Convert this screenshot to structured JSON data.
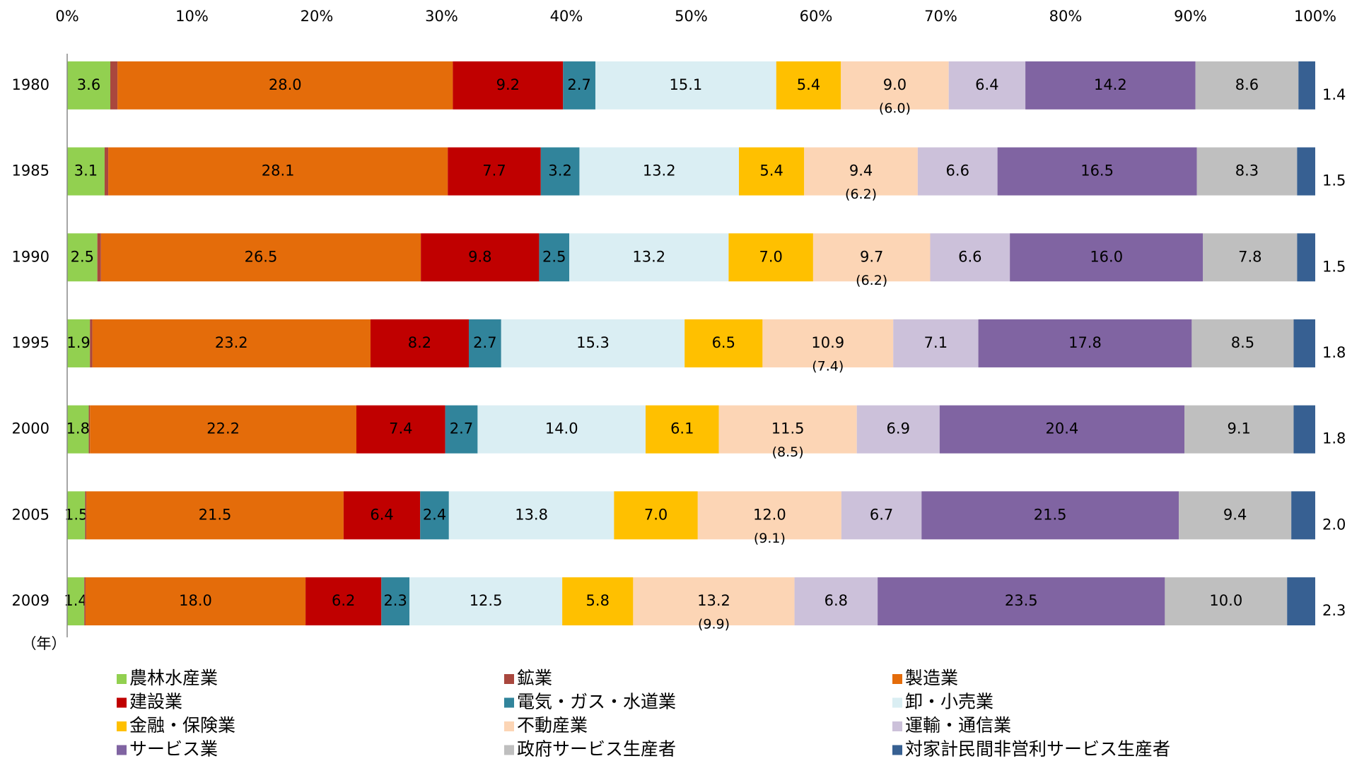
{
  "chart_data": {
    "type": "bar",
    "orientation": "horizontal",
    "stacked": "percent",
    "y_label": "（年）",
    "categories": [
      "1980",
      "1985",
      "1990",
      "1995",
      "2000",
      "2005",
      "2009"
    ],
    "xlim": [
      0,
      100
    ],
    "xticks": [
      {
        "value": 0,
        "label": "0%"
      },
      {
        "value": 10,
        "label": "10%"
      },
      {
        "value": 20,
        "label": "20%"
      },
      {
        "value": 30,
        "label": "30%"
      },
      {
        "value": 40,
        "label": "40%"
      },
      {
        "value": 50,
        "label": "50%"
      },
      {
        "value": 60,
        "label": "60%"
      },
      {
        "value": 70,
        "label": "70%"
      },
      {
        "value": 80,
        "label": "80%"
      },
      {
        "value": 90,
        "label": "90%"
      },
      {
        "value": 100,
        "label": "100%"
      }
    ],
    "grid": false,
    "legend": "bottom",
    "series": [
      {
        "name": "農林水産業",
        "color": "#92d050",
        "values": [
          3.6,
          3.1,
          2.5,
          1.9,
          1.8,
          1.5,
          1.4
        ],
        "value_labels": [
          "3.6",
          "3.1",
          "2.5",
          "1.9",
          "1.8",
          "1.5",
          "1.4"
        ]
      },
      {
        "name": "鉱業",
        "color": "#a9473e",
        "values": [
          0.6,
          0.3,
          0.3,
          0.2,
          0.1,
          0.1,
          0.1
        ],
        "value_labels": [
          "0.6",
          "0.3",
          "0.3",
          "0.2",
          "0.1",
          "0.1",
          "0.1"
        ]
      },
      {
        "name": "製造業",
        "color": "#e46c0a",
        "values": [
          28.0,
          28.1,
          26.5,
          23.2,
          22.2,
          21.5,
          18.0
        ],
        "value_labels": [
          "28.0",
          "28.1",
          "26.5",
          "23.2",
          "22.2",
          "21.5",
          "18.0"
        ]
      },
      {
        "name": "建設業",
        "color": "#c00000",
        "values": [
          9.2,
          7.7,
          9.8,
          8.2,
          7.4,
          6.4,
          6.2
        ],
        "value_labels": [
          "9.2",
          "7.7",
          "9.8",
          "8.2",
          "7.4",
          "6.4",
          "6.2"
        ]
      },
      {
        "name": "電気・ガス・水道業",
        "color": "#31849b",
        "values": [
          2.7,
          3.2,
          2.5,
          2.7,
          2.7,
          2.4,
          2.3
        ],
        "value_labels": [
          "2.7",
          "3.2",
          "2.5",
          "2.7",
          "2.7",
          "2.4",
          "2.3"
        ]
      },
      {
        "name": "卸・小売業",
        "color": "#daeef3",
        "values": [
          15.1,
          13.2,
          13.2,
          15.3,
          14.0,
          13.8,
          12.5
        ],
        "value_labels": [
          "15.1",
          "13.2",
          "13.2",
          "15.3",
          "14.0",
          "13.8",
          "12.5"
        ]
      },
      {
        "name": "金融・保険業",
        "color": "#ffc000",
        "values": [
          5.4,
          5.4,
          7.0,
          6.5,
          6.1,
          7.0,
          5.8
        ],
        "value_labels": [
          "5.4",
          "5.4",
          "7.0",
          "6.5",
          "6.1",
          "7.0",
          "5.8"
        ]
      },
      {
        "name": "不動産業",
        "color": "#fcd5b5",
        "values": [
          9.0,
          9.4,
          9.7,
          10.9,
          11.5,
          12.0,
          13.2
        ],
        "value_labels": [
          "9.0",
          "9.4",
          "9.7",
          "10.9",
          "11.5",
          "12.0",
          "13.2"
        ],
        "sub_values": [
          {
            "value": 6.0,
            "label": "(6.0)"
          },
          {
            "value": 6.2,
            "label": "(6.2)"
          },
          {
            "value": 6.2,
            "label": "(6.2)"
          },
          {
            "value": 7.4,
            "label": "(7.4)"
          },
          {
            "value": 8.5,
            "label": "(8.5)"
          },
          {
            "value": 9.1,
            "label": "(9.1)"
          },
          {
            "value": 9.9,
            "label": "(9.9)"
          }
        ]
      },
      {
        "name": "運輸・通信業",
        "color": "#ccc1da",
        "values": [
          6.4,
          6.6,
          6.6,
          7.1,
          6.9,
          6.7,
          6.8
        ],
        "value_labels": [
          "6.4",
          "6.6",
          "6.6",
          "7.1",
          "6.9",
          "6.7",
          "6.8"
        ]
      },
      {
        "name": "サービス業",
        "color": "#8064a2",
        "values": [
          14.2,
          16.5,
          16.0,
          17.8,
          20.4,
          21.5,
          23.5
        ],
        "value_labels": [
          "14.2",
          "16.5",
          "16.0",
          "17.8",
          "20.4",
          "21.5",
          "23.5"
        ]
      },
      {
        "name": "政府サービス生産者",
        "color": "#bfbfbf",
        "values": [
          8.6,
          8.3,
          7.8,
          8.5,
          9.1,
          9.4,
          10.0
        ],
        "value_labels": [
          "8.6",
          "8.3",
          "7.8",
          "8.5",
          "9.1",
          "9.4",
          "10.0"
        ]
      },
      {
        "name": "対家計民間非営利サービス生産者",
        "color": "#376092",
        "values": [
          1.4,
          1.5,
          1.5,
          1.8,
          1.8,
          2.0,
          2.3
        ],
        "value_labels": [
          "1.4",
          "1.5",
          "1.5",
          "1.8",
          "1.8",
          "2.0",
          "2.3"
        ]
      }
    ]
  }
}
